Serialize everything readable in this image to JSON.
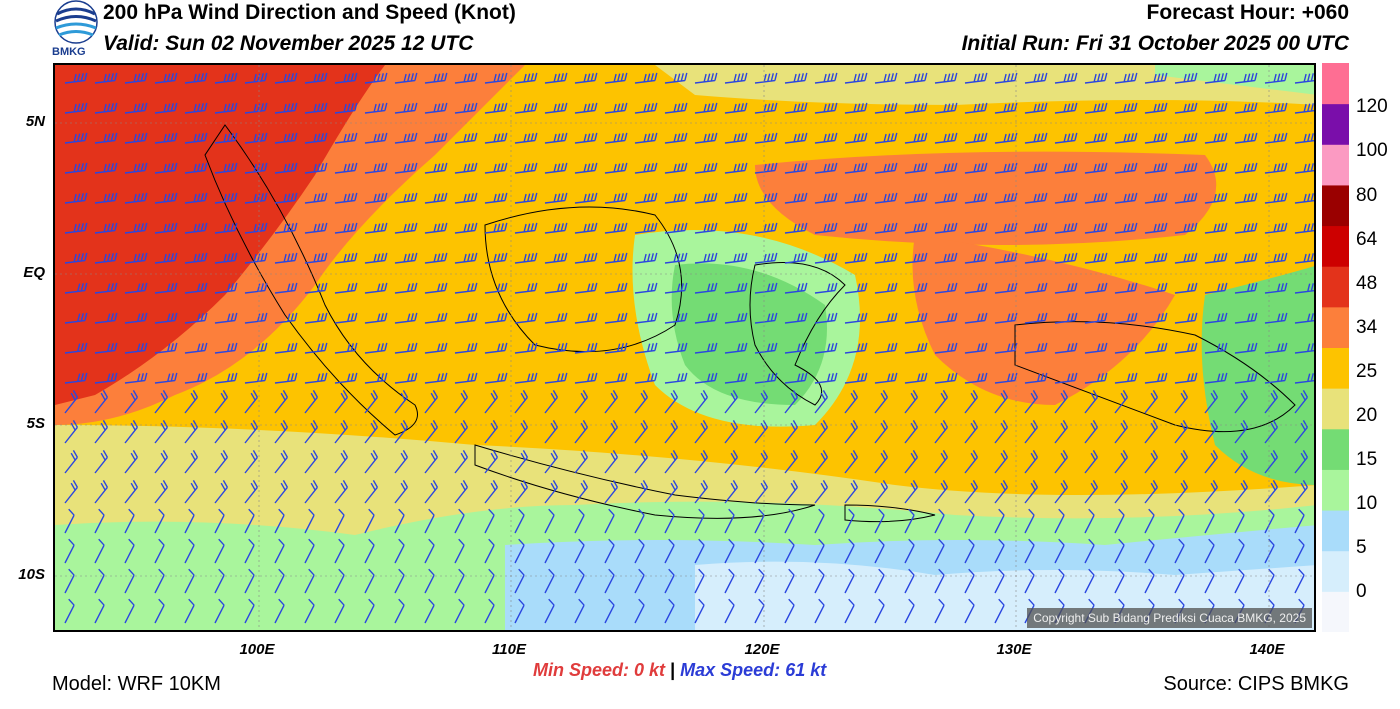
{
  "header": {
    "title": "200 hPa Wind Direction and Speed (Knot)",
    "valid": "Valid: Sun 02 November 2025 12 UTC",
    "forecast_hour": "Forecast Hour: +060",
    "initial_run": "Initial Run: Fri 31 October 2025 00 UTC"
  },
  "logo": {
    "text": "BMKG",
    "icon": "bmkg-logo-icon"
  },
  "axes": {
    "lat_labels": [
      "5N",
      "EQ",
      "5S",
      "10S"
    ],
    "lon_labels": [
      "100E",
      "110E",
      "120E",
      "130E",
      "140E"
    ]
  },
  "colorbar": {
    "labels": [
      "120",
      "100",
      "80",
      "64",
      "48",
      "34",
      "25",
      "20",
      "15",
      "10",
      "5",
      "0"
    ],
    "colors": [
      "#f5f7fc",
      "#d6eefc",
      "#a9dcfa",
      "#a9f59c",
      "#74dc74",
      "#e8e27a",
      "#fdc300",
      "#fc7f3b",
      "#e3331b",
      "#cd0000",
      "#9a0000",
      "#fb9ac2",
      "#7a0eaa",
      "#fe6e93"
    ]
  },
  "map": {
    "copyright": "Copyright Sub Bidang Prediksi Cuaca BMKG, 2025",
    "barb_color": "#2a46e0"
  },
  "footer": {
    "min_label": "Min Speed:",
    "min_value": "0 kt",
    "separator": "|",
    "max_label": "Max Speed:",
    "max_value": "61 kt",
    "model": "Model: WRF 10KM",
    "source": "Source: CIPS BMKG"
  }
}
